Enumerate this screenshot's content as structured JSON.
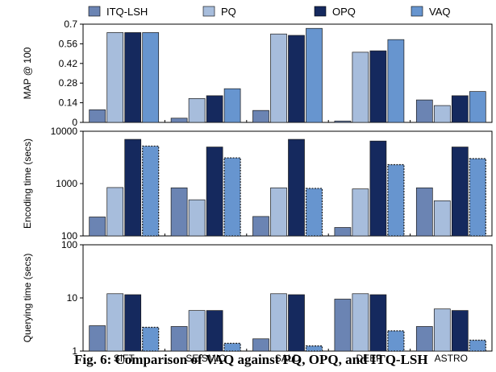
{
  "caption": "Fig. 6: Comparison of VAQ against PQ, OPQ, and ITQ-LSH",
  "colors": {
    "ITQ-LSH": "#6b84b3",
    "PQ": "#a7bddc",
    "OPQ": "#15295e",
    "VAQ": "#6795cf"
  },
  "chart_data": [
    {
      "type": "bar",
      "title": "",
      "ylabel": "MAP @ 100",
      "yscale": "linear",
      "ylim": [
        0,
        0.7
      ],
      "yticks": [
        "0",
        "0.14",
        "0.28",
        "0.42",
        "0.56",
        "0.7"
      ],
      "categories": [
        "SIFT",
        "SEISMIC",
        "SALD",
        "DEEP",
        "ASTRO"
      ],
      "legend": "top",
      "series": [
        {
          "name": "ITQ-LSH",
          "values": [
            0.09,
            0.03,
            0.085,
            0.01,
            0.16
          ]
        },
        {
          "name": "PQ",
          "values": [
            0.64,
            0.17,
            0.63,
            0.5,
            0.12
          ]
        },
        {
          "name": "OPQ",
          "values": [
            0.64,
            0.19,
            0.62,
            0.51,
            0.19
          ]
        },
        {
          "name": "VAQ",
          "values": [
            0.64,
            0.24,
            0.67,
            0.59,
            0.22
          ]
        }
      ]
    },
    {
      "type": "bar",
      "title": "",
      "ylabel": "Encoding time (secs)",
      "yscale": "log",
      "ylim": [
        100,
        10000
      ],
      "yticks": [
        "100",
        "1000",
        "10000"
      ],
      "categories": [
        "SIFT",
        "SEISMIC",
        "SALD",
        "DEEP",
        "ASTRO"
      ],
      "series": [
        {
          "name": "ITQ-LSH",
          "values": [
            230,
            830,
            235,
            145,
            830
          ]
        },
        {
          "name": "PQ",
          "values": [
            840,
            490,
            830,
            790,
            470
          ]
        },
        {
          "name": "OPQ",
          "values": [
            7000,
            5000,
            7000,
            6500,
            5000
          ]
        },
        {
          "name": "VAQ",
          "values": [
            5200,
            3100,
            810,
            2300,
            3000
          ]
        }
      ]
    },
    {
      "type": "bar",
      "title": "",
      "ylabel": "Querying time (secs)",
      "yscale": "log",
      "ylim": [
        1,
        100
      ],
      "yticks": [
        "1",
        "10",
        "100"
      ],
      "categories": [
        "SIFT",
        "SEISMIC",
        "SALD",
        "DEEP",
        "ASTRO"
      ],
      "series": [
        {
          "name": "ITQ-LSH",
          "values": [
            3.0,
            2.9,
            1.7,
            9.5,
            2.9
          ]
        },
        {
          "name": "PQ",
          "values": [
            12.0,
            5.8,
            12.0,
            12.0,
            6.2
          ]
        },
        {
          "name": "OPQ",
          "values": [
            11.5,
            5.8,
            11.5,
            11.5,
            5.8
          ]
        },
        {
          "name": "VAQ",
          "values": [
            2.8,
            1.4,
            1.25,
            2.4,
            1.6
          ]
        }
      ]
    }
  ]
}
